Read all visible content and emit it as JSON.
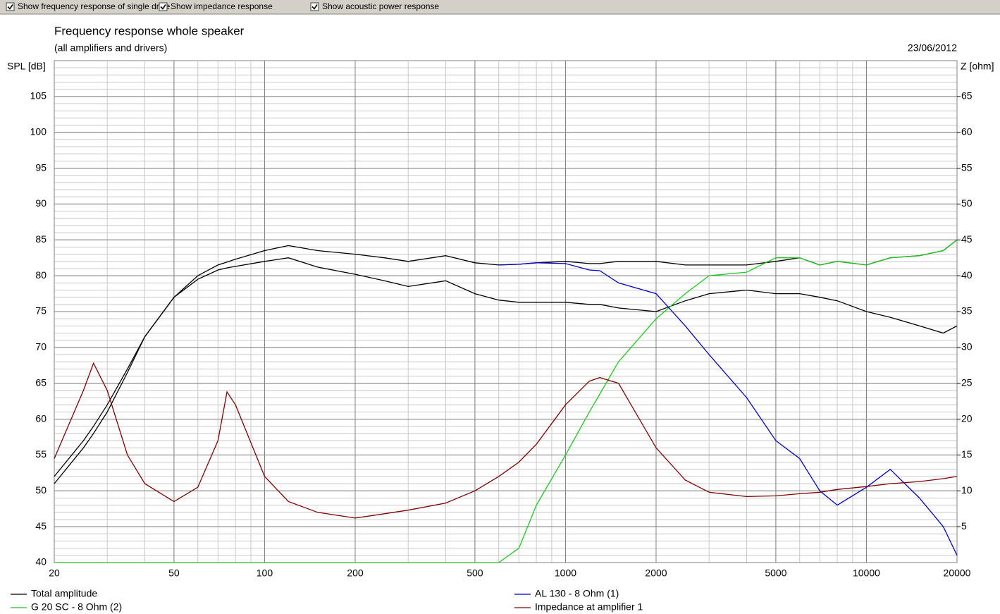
{
  "toolbar": {
    "checkboxes": [
      {
        "label": "Show frequency response of single drive",
        "checked": true
      },
      {
        "label": "Show impedance response",
        "checked": true
      },
      {
        "label": "Show acoustic power response",
        "checked": true
      }
    ]
  },
  "chart_data": {
    "type": "line",
    "title": "Frequency response whole speaker",
    "subtitle": "(all amplifiers and drivers)",
    "date": "23/06/2012",
    "y_label": "SPL [dB]",
    "y2_label": "Z [ohm]",
    "log_x": true,
    "grid": true,
    "minor_grid": true,
    "x": [
      20,
      25,
      27,
      30,
      35,
      40,
      50,
      60,
      70,
      75,
      80,
      100,
      120,
      150,
      200,
      250,
      300,
      400,
      500,
      600,
      700,
      800,
      1000,
      1200,
      1300,
      1500,
      2000,
      2500,
      3000,
      4000,
      5000,
      6000,
      7000,
      8000,
      10000,
      12000,
      15000,
      18000,
      20000
    ],
    "xlim": [
      20,
      20000
    ],
    "xticks": [
      20,
      50,
      100,
      200,
      500,
      1000,
      2000,
      5000,
      10000,
      20000
    ],
    "ylim": [
      40,
      110
    ],
    "yticks": [
      40,
      45,
      50,
      55,
      60,
      65,
      70,
      75,
      80,
      85,
      90,
      95,
      100,
      105
    ],
    "y2lim": [
      0,
      70
    ],
    "y2ticks": [
      5,
      10,
      15,
      20,
      25,
      30,
      35,
      40,
      45,
      50,
      55,
      60,
      65
    ],
    "series": [
      {
        "name": "Total amplitude",
        "color": "#000000",
        "values": [
          52,
          57,
          59,
          62,
          67,
          71.5,
          77,
          80,
          81.5,
          81.9,
          82.3,
          83.5,
          84.2,
          83.5,
          83,
          82.5,
          82,
          82.8,
          81.8,
          81.5,
          81.6,
          81.8,
          82,
          81.7,
          81.7,
          82,
          82,
          81.5,
          81.5,
          81.5,
          82,
          82.5,
          81.5,
          82,
          81.5,
          82.5,
          82.8,
          83.5,
          85
        ]
      },
      {
        "color": "#000000",
        "values": [
          51,
          56,
          58,
          61,
          66.5,
          71.5,
          77,
          79.5,
          80.8,
          81.1,
          81.3,
          82,
          82.5,
          81.2,
          80.2,
          79.3,
          78.5,
          79.3,
          77.5,
          76.6,
          76.3,
          76.3,
          76.3,
          76,
          76,
          75.5,
          75,
          76.5,
          77.5,
          78,
          77.5,
          77.5,
          77,
          76.5,
          75,
          74.2,
          73,
          72,
          73
        ]
      },
      {
        "name": "G 20 SC - 8 Ohm (2)",
        "color": "#1ec81e",
        "values": [
          40,
          40,
          40,
          40,
          40,
          40,
          40,
          40,
          40,
          40,
          40,
          40,
          40,
          40,
          40,
          40,
          40,
          40,
          40,
          40,
          42,
          48,
          55,
          61,
          63.5,
          68,
          74,
          77.5,
          80,
          80.5,
          82.5,
          82.5,
          81.5,
          82,
          81.5,
          82.5,
          82.8,
          83.5,
          85
        ]
      },
      {
        "name": "AL 130 - 8 Ohm (1)",
        "color": "#0000c8",
        "values": [
          null,
          null,
          null,
          null,
          null,
          null,
          null,
          null,
          null,
          null,
          null,
          null,
          null,
          null,
          null,
          null,
          null,
          null,
          null,
          81.5,
          81.6,
          81.8,
          81.7,
          80.8,
          80.7,
          79,
          77.5,
          73,
          69,
          63,
          57,
          54.5,
          50,
          48,
          50.5,
          53,
          49,
          45,
          41
        ]
      },
      {
        "name": "Impedance at amplifier 1",
        "color": "#800000",
        "axis": "y2",
        "values": [
          14.5,
          24,
          27.8,
          24,
          15,
          11,
          8.5,
          10.5,
          17,
          23.8,
          22,
          12,
          8.5,
          7,
          6.2,
          6.8,
          7.3,
          8.3,
          10,
          12,
          14,
          16.5,
          22,
          25.3,
          25.8,
          25,
          16,
          11.5,
          9.8,
          9.2,
          9.3,
          9.6,
          9.8,
          10.2,
          10.6,
          11,
          11.3,
          11.7,
          12
        ]
      }
    ]
  }
}
